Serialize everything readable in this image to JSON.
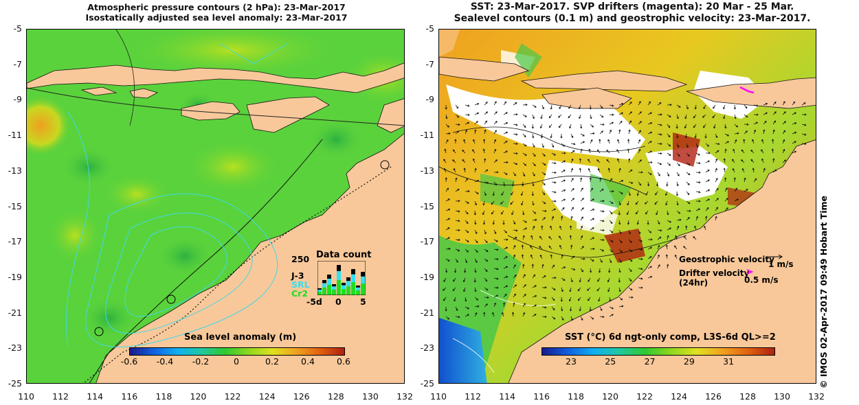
{
  "left_panel": {
    "title_line1": "Atmospheric pressure contours (2 hPa): 23-Mar-2017",
    "title_line2": "Isostatically adjusted sea level anomaly: 23-Mar-2017",
    "colorbar": {
      "label": "Sea level anomaly (m)",
      "ticks": [
        "-0.6",
        "-0.4",
        "-0.2",
        "0",
        "0.2",
        "0.4",
        "0.6"
      ]
    },
    "data_count": {
      "title": "Data count",
      "ymax_label": "250",
      "series": [
        "J-3",
        "SRL",
        "Cr2"
      ],
      "series_colors": [
        "#000000",
        "#33e0f0",
        "#20dd20"
      ],
      "x_ticks": [
        "-5d",
        "0",
        "5"
      ]
    }
  },
  "right_panel": {
    "title_line1": "SST: 23-Mar-2017. SVP drifters (magenta): 20 Mar - 25 Mar.",
    "title_line2": "Sealevel contours (0.1 m) and geostrophic velocity: 23-Mar-2017.",
    "legend": {
      "geostrophic_label": "Geostrophic velocity",
      "geostrophic_scale": "1 m/s",
      "drifter_label": "Drifter velocity",
      "drifter_sub": "(24hr)",
      "drifter_scale": "0.5 m/s",
      "drifter_color": "#ff00ff"
    },
    "colorbar": {
      "label": "SST (°C) 6d ngt-only comp, L3S-6d QL>=2",
      "ticks": [
        "23",
        "25",
        "27",
        "29",
        "31"
      ]
    }
  },
  "axes": {
    "lat_ticks": [
      "-5",
      "-7",
      "-9",
      "-11",
      "-13",
      "-15",
      "-17",
      "-19",
      "-21",
      "-23",
      "-25"
    ],
    "lon_ticks": [
      "110",
      "112",
      "114",
      "116",
      "118",
      "120",
      "122",
      "124",
      "126",
      "128",
      "130",
      "132"
    ]
  },
  "watermark": "© IMOS 02-Apr-2017 09:49 Hobart Time",
  "colors": {
    "land": "#f8c89a",
    "ocean_green": "#5ad23c",
    "ocean_orange": "#ee8a1a"
  }
}
